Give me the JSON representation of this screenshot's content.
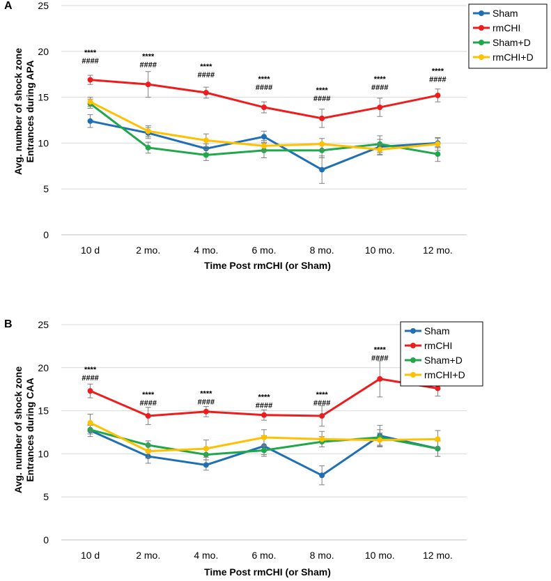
{
  "chart_data": [
    {
      "type": "line",
      "panel_label": "A",
      "ylabel": [
        "Avg. number of shock zone",
        "Entrances during APA"
      ],
      "xlabel": "Time Post rmCHI (or Sham)",
      "categories": [
        "10 d",
        "2 mo.",
        "4 mo.",
        "6 mo.",
        "8 mo.",
        "10 mo.",
        "12 mo."
      ],
      "ylim": [
        0,
        25
      ],
      "yticks": [
        "0",
        "5",
        "10",
        "15",
        "20",
        "25"
      ],
      "grid": true,
      "legend": "top-right",
      "series": [
        {
          "name": "Sham",
          "color": "#1f6fb5",
          "values": [
            12.4,
            11.1,
            9.4,
            10.7,
            7.1,
            9.6,
            10.0
          ],
          "errors": [
            0.7,
            0.6,
            0.5,
            0.6,
            1.5,
            0.8,
            0.5
          ]
        },
        {
          "name": "rmCHI",
          "color": "#ee1c1c",
          "values": [
            16.9,
            16.4,
            15.5,
            13.9,
            12.7,
            13.9,
            15.2
          ],
          "errors": [
            0.5,
            1.4,
            0.6,
            0.6,
            1.0,
            1.0,
            0.7
          ]
        },
        {
          "name": "Sham+D",
          "color": "#1fa84a",
          "values": [
            14.3,
            9.5,
            8.7,
            9.2,
            9.2,
            9.9,
            8.8
          ],
          "errors": [
            0.5,
            0.6,
            0.6,
            0.8,
            0.8,
            0.9,
            0.8
          ]
        },
        {
          "name": "rmCHI+D",
          "color": "#ffc000",
          "values": [
            14.5,
            11.3,
            10.3,
            9.7,
            9.9,
            9.3,
            9.9
          ],
          "errors": [
            0.5,
            0.6,
            0.7,
            0.6,
            0.6,
            0.6,
            0.7
          ]
        }
      ],
      "annotations": [
        {
          "x": "10 d",
          "lines": [
            "****",
            "####"
          ],
          "y": 19.6
        },
        {
          "x": "2 mo.",
          "lines": [
            "****",
            "####"
          ],
          "y": 19.2
        },
        {
          "x": "4 mo.",
          "lines": [
            "****",
            "####"
          ],
          "y": 18.1
        },
        {
          "x": "6 mo.",
          "lines": [
            "****",
            "####"
          ],
          "y": 16.7
        },
        {
          "x": "8 mo.",
          "lines": [
            "****",
            "####"
          ],
          "y": 15.5
        },
        {
          "x": "10 mo.",
          "lines": [
            "****",
            "####"
          ],
          "y": 16.7
        },
        {
          "x": "12 mo.",
          "lines": [
            "****",
            "####"
          ],
          "y": 17.6
        }
      ]
    },
    {
      "type": "line",
      "panel_label": "B",
      "ylabel": [
        "Avg. number of shock zone",
        "Entrances during CAA"
      ],
      "xlabel": "Time Post rmCHI (or Sham)",
      "categories": [
        "10 d",
        "2 mo.",
        "4 mo.",
        "6 mo.",
        "8 mo.",
        "10 mo.",
        "12 mo."
      ],
      "ylim": [
        0,
        25
      ],
      "yticks": [
        "0",
        "5",
        "10",
        "15",
        "20",
        "25"
      ],
      "grid": true,
      "legend": "top-right",
      "series": [
        {
          "name": "Sham",
          "color": "#1f6fb5",
          "values": [
            12.7,
            9.7,
            8.7,
            10.9,
            7.5,
            12.1,
            10.6
          ],
          "errors": [
            0.7,
            0.8,
            0.6,
            1.2,
            1.1,
            1.2,
            0.9
          ]
        },
        {
          "name": "rmCHI",
          "color": "#ee1c1c",
          "values": [
            17.3,
            14.4,
            14.9,
            14.5,
            14.4,
            18.7,
            17.6
          ],
          "errors": [
            0.8,
            1.0,
            0.6,
            0.6,
            1.2,
            2.1,
            0.9
          ]
        },
        {
          "name": "Sham+D",
          "color": "#1fa84a",
          "values": [
            12.8,
            11.0,
            9.9,
            10.4,
            11.4,
            11.9,
            10.6
          ],
          "errors": [
            0.5,
            0.5,
            0.6,
            0.5,
            0.6,
            0.9,
            0.9
          ]
        },
        {
          "name": "rmCHI+D",
          "color": "#ffc000",
          "values": [
            13.6,
            10.3,
            10.6,
            11.9,
            11.7,
            11.6,
            11.7
          ],
          "errors": [
            1.0,
            0.8,
            1.0,
            0.9,
            0.9,
            0.8,
            1.0
          ]
        }
      ],
      "annotations": [
        {
          "x": "10 d",
          "lines": [
            "****",
            "####"
          ],
          "y": 19.5
        },
        {
          "x": "2 mo.",
          "lines": [
            "****",
            "####"
          ],
          "y": 16.6
        },
        {
          "x": "4 mo.",
          "lines": [
            "****",
            "####"
          ],
          "y": 16.7
        },
        {
          "x": "6 mo.",
          "lines": [
            "****",
            "####"
          ],
          "y": 16.3
        },
        {
          "x": "8 mo.",
          "lines": [
            "****",
            "####"
          ],
          "y": 16.6
        },
        {
          "x": "10 mo.",
          "lines": [
            "****",
            "####"
          ],
          "y": 21.8
        },
        {
          "x": "12 mo.",
          "lines": [
            "****",
            "####"
          ],
          "y": 19.5
        }
      ]
    }
  ]
}
